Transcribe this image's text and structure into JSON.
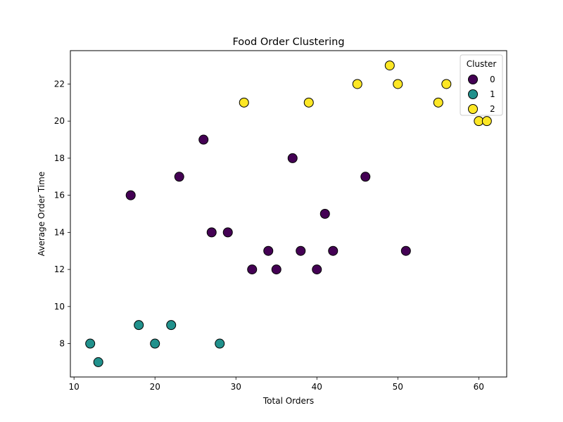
{
  "chart_data": {
    "type": "scatter",
    "title": "Food Order Clustering",
    "xlabel": "Total Orders",
    "ylabel": "Average Order Time",
    "xlim": [
      9.55,
      63.45
    ],
    "ylim": [
      6.2,
      23.8
    ],
    "xticks": [
      10,
      20,
      30,
      40,
      50,
      60
    ],
    "yticks": [
      8,
      10,
      12,
      14,
      16,
      18,
      20,
      22
    ],
    "grid": false,
    "legend": {
      "title": "Cluster",
      "placement": "top-right"
    },
    "series": [
      {
        "name": "0",
        "color": "#440154",
        "points": [
          [
            17,
            16
          ],
          [
            23,
            17
          ],
          [
            26,
            19
          ],
          [
            27,
            14
          ],
          [
            29,
            14
          ],
          [
            32,
            12
          ],
          [
            34,
            13
          ],
          [
            35,
            12
          ],
          [
            37,
            18
          ],
          [
            38,
            13
          ],
          [
            40,
            12
          ],
          [
            41,
            15
          ],
          [
            42,
            13
          ],
          [
            46,
            17
          ],
          [
            51,
            13
          ]
        ]
      },
      {
        "name": "1",
        "color": "#21918c",
        "points": [
          [
            12,
            8
          ],
          [
            13,
            7
          ],
          [
            18,
            9
          ],
          [
            20,
            8
          ],
          [
            22,
            9
          ],
          [
            28,
            8
          ]
        ]
      },
      {
        "name": "2",
        "color": "#fde725",
        "points": [
          [
            31,
            21
          ],
          [
            39,
            21
          ],
          [
            45,
            22
          ],
          [
            49,
            23
          ],
          [
            50,
            22
          ],
          [
            55,
            21
          ],
          [
            56,
            22
          ],
          [
            60,
            20
          ],
          [
            61,
            20
          ]
        ]
      }
    ]
  }
}
